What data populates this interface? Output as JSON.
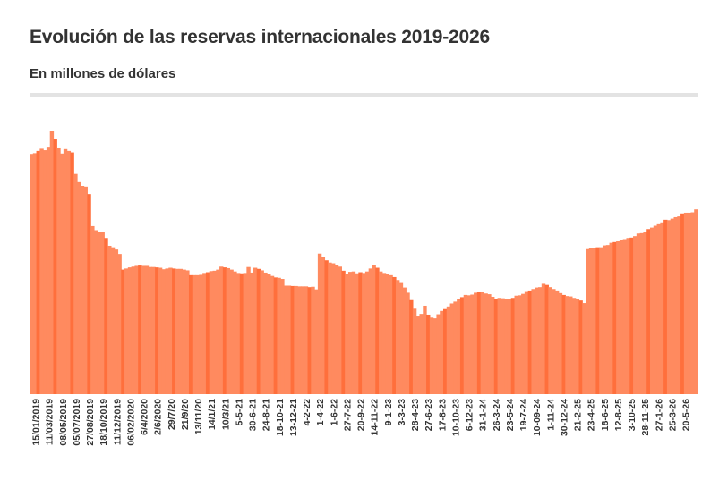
{
  "header": {
    "title": "Evolución de las reservas internacionales 2019-2026",
    "subtitle": "En millones de dólares"
  },
  "colors": {
    "bar": "#ff8a5f",
    "bar_dark": "#ff6f3c",
    "rule": "#e3e3e3",
    "text": "#333333"
  },
  "chart_data": {
    "type": "bar",
    "title": "Evolución de las reservas internacionales 2019-2026",
    "subtitle": "En millones de dólares",
    "xlabel": "",
    "ylabel": "",
    "grid": false,
    "legend": "none",
    "tick_labels": [
      "15/01/2019",
      "11/03/2019",
      "08/05/2019",
      "05/07/2019",
      "27/08/2019",
      "18/10/2019",
      "11/12/2019",
      "06/02/2020",
      "6/4/2020",
      "2/6/2020",
      "29/7/20",
      "21/9/20",
      "13/11/20",
      "14/1/21",
      "10/3/21",
      "5-5-21",
      "30-6-21",
      "24-8-21",
      "18-10-21",
      "13-12-21",
      "4-2-22",
      "1-4-22",
      "1-6-22",
      "27-7-22",
      "20-9-22",
      "14-11-22",
      "9-1-23",
      "3-3-23",
      "28-4-23",
      "27-6-23",
      "17-8-23",
      "10-10-23",
      "6-12-23",
      "31-1-24",
      "26-3-24",
      "23-5-24",
      "19-7-24",
      "10-09-24",
      "1-11-24",
      "30-12-24",
      "21-2-25",
      "23-4-25",
      "18-6-25",
      "12-8-25",
      "3-10-25",
      "28-11-25",
      "27-1-26",
      "25-3-26",
      "20-5-26"
    ],
    "series": [
      {
        "values": [
          64600,
          64800,
          65400,
          66000,
          65600,
          66300,
          70900,
          68500,
          66100,
          64700,
          65900,
          65400,
          65000,
          59200,
          57000,
          56000,
          55800,
          53800,
          45200,
          44100,
          43600,
          43500,
          42000,
          39900,
          39500,
          38900,
          37700,
          33500,
          33800,
          34100,
          34300,
          34500,
          34600,
          34500,
          34500,
          34200,
          34200,
          34100,
          34000,
          33600,
          33800,
          34000,
          33800,
          33700,
          33700,
          33500,
          33300,
          32000,
          32000,
          32000,
          32100,
          32600,
          32800,
          33100,
          33200,
          33500,
          34300,
          34100,
          33900,
          33500,
          33000,
          32600,
          32500,
          32600,
          34200,
          32700,
          34000,
          33700,
          33300,
          32700,
          32400,
          31800,
          31400,
          31300,
          31000,
          29200,
          29200,
          29100,
          29100,
          29000,
          29000,
          29000,
          28800,
          28900,
          28200,
          37800,
          37000,
          36000,
          35400,
          35200,
          34800,
          34300,
          33200,
          32300,
          32900,
          33000,
          32500,
          32800,
          32600,
          33000,
          33800,
          34800,
          34000,
          33000,
          32600,
          32400,
          32000,
          31500,
          30700,
          29900,
          28700,
          27300,
          25300,
          23000,
          20900,
          21600,
          23800,
          21400,
          20600,
          20400,
          21500,
          22400,
          22900,
          23600,
          24400,
          24900,
          25500,
          26100,
          26700,
          26600,
          26800,
          27300,
          27400,
          27400,
          27100,
          26900,
          26200,
          25600,
          25900,
          25800,
          25600,
          25700,
          25900,
          26500,
          26600,
          27000,
          27500,
          27900,
          28300,
          28700,
          28800,
          29700,
          29400,
          28800,
          28300,
          27900,
          27200,
          26700,
          26400,
          26300,
          25900,
          25600,
          25200,
          24500,
          39000,
          39400,
          39400,
          39500,
          39500,
          40000,
          40100,
          40700,
          40900,
          41100,
          41400,
          41700,
          42000,
          42100,
          42500,
          43200,
          43300,
          43700,
          44400,
          44800,
          45300,
          45700,
          46200,
          46900,
          46800,
          47200,
          47600,
          47800,
          48600,
          48800,
          48800,
          48900,
          49700
        ]
      }
    ]
  }
}
